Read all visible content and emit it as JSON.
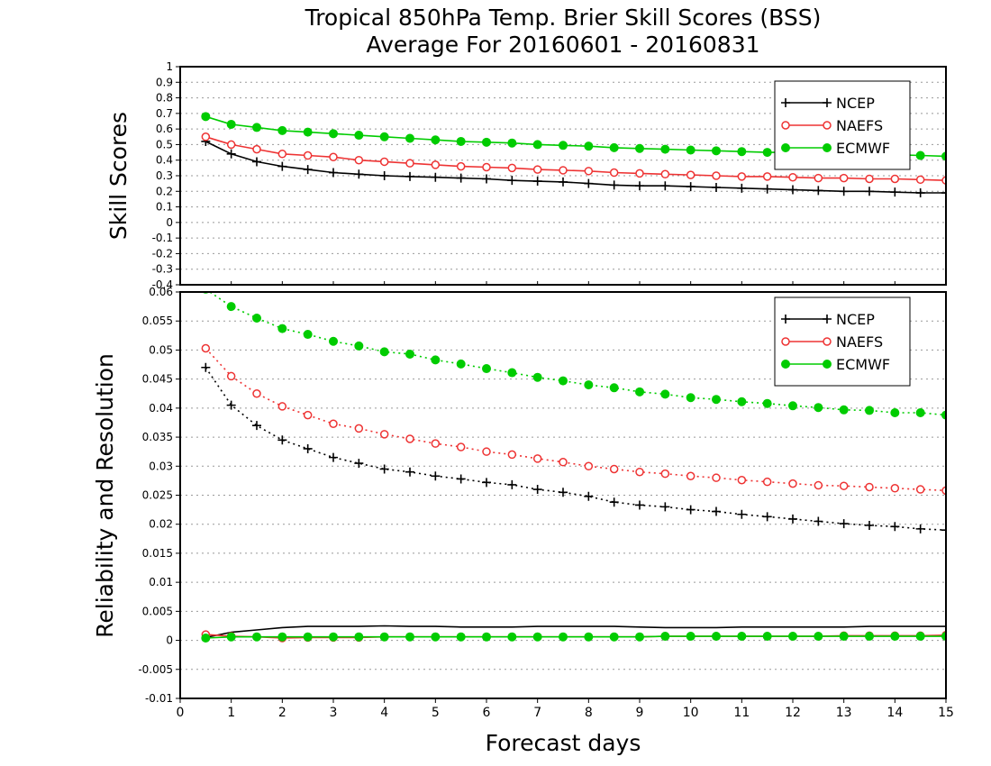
{
  "title_line1": "Tropical 850hPa Temp. Brier Skill Scores (BSS)",
  "title_line2": "Average For 20160601 - 20160831",
  "xlabel": "Forecast days",
  "colors": {
    "NCEP": "#000000",
    "NAEFS": "#ee3333",
    "ECMWF": "#00cc00"
  },
  "legend": [
    "NCEP",
    "NAEFS",
    "ECMWF"
  ],
  "chart_data": [
    {
      "type": "line",
      "ylabel": "Skill Scores",
      "xlim": [
        0,
        15
      ],
      "ylim": [
        -0.4,
        1
      ],
      "grid": true,
      "legend_position": "top-right",
      "yticks": [
        "-0.4",
        "-0.3",
        "-0.2",
        "-0.1",
        "0",
        "0.1",
        "0.2",
        "0.3",
        "0.4",
        "0.5",
        "0.6",
        "0.7",
        "0.8",
        "0.9",
        "1"
      ],
      "x": [
        0.5,
        1,
        1.5,
        2,
        2.5,
        3,
        3.5,
        4,
        4.5,
        5,
        5.5,
        6,
        6.5,
        7,
        7.5,
        8,
        8.5,
        9,
        9.5,
        10,
        10.5,
        11,
        11.5,
        12,
        12.5,
        13,
        13.5,
        14,
        14.5,
        15
      ],
      "series": [
        {
          "name": "NCEP",
          "style": "solid",
          "marker": "plus",
          "values": [
            0.52,
            0.44,
            0.39,
            0.36,
            0.34,
            0.32,
            0.31,
            0.3,
            0.295,
            0.29,
            0.285,
            0.28,
            0.27,
            0.265,
            0.26,
            0.25,
            0.24,
            0.235,
            0.235,
            0.23,
            0.225,
            0.22,
            0.215,
            0.21,
            0.205,
            0.2,
            0.2,
            0.195,
            0.19,
            0.19
          ]
        },
        {
          "name": "NAEFS",
          "style": "solid",
          "marker": "open-circle",
          "values": [
            0.55,
            0.5,
            0.47,
            0.44,
            0.43,
            0.42,
            0.4,
            0.39,
            0.38,
            0.37,
            0.36,
            0.355,
            0.35,
            0.34,
            0.335,
            0.33,
            0.32,
            0.315,
            0.31,
            0.305,
            0.3,
            0.295,
            0.295,
            0.29,
            0.285,
            0.285,
            0.28,
            0.28,
            0.275,
            0.27
          ]
        },
        {
          "name": "ECMWF",
          "style": "solid",
          "marker": "filled-circle",
          "values": [
            0.68,
            0.63,
            0.61,
            0.59,
            0.58,
            0.57,
            0.56,
            0.55,
            0.54,
            0.53,
            0.52,
            0.515,
            0.51,
            0.5,
            0.495,
            0.49,
            0.48,
            0.475,
            0.47,
            0.465,
            0.46,
            0.455,
            0.45,
            0.45,
            0.445,
            0.44,
            0.44,
            0.435,
            0.43,
            0.425
          ]
        }
      ]
    },
    {
      "type": "line",
      "ylabel": "Reliability and Resolution",
      "xlim": [
        0,
        15
      ],
      "ylim": [
        -0.01,
        0.06
      ],
      "grid": true,
      "legend_position": "top-right",
      "yticks": [
        "-0.01",
        "-0.005",
        "0",
        "0.005",
        "0.01",
        "0.015",
        "0.02",
        "0.025",
        "0.03",
        "0.035",
        "0.04",
        "0.045",
        "0.05",
        "0.055",
        "0.06"
      ],
      "xticks": [
        "0",
        "1",
        "2",
        "3",
        "4",
        "5",
        "6",
        "7",
        "8",
        "9",
        "10",
        "11",
        "12",
        "13",
        "14",
        "15"
      ],
      "x": [
        0.5,
        1,
        1.5,
        2,
        2.5,
        3,
        3.5,
        4,
        4.5,
        5,
        5.5,
        6,
        6.5,
        7,
        7.5,
        8,
        8.5,
        9,
        9.5,
        10,
        10.5,
        11,
        11.5,
        12,
        12.5,
        13,
        13.5,
        14,
        14.5,
        15
      ],
      "series": [
        {
          "name": "NCEP",
          "style": "dotted",
          "marker": "plus",
          "values": [
            0.047,
            0.0405,
            0.037,
            0.0345,
            0.033,
            0.0315,
            0.0305,
            0.0295,
            0.029,
            0.0283,
            0.0278,
            0.0272,
            0.0268,
            0.026,
            0.0255,
            0.0248,
            0.0238,
            0.0233,
            0.023,
            0.0225,
            0.0222,
            0.0217,
            0.0213,
            0.0209,
            0.0205,
            0.0201,
            0.0198,
            0.0196,
            0.0192,
            0.019
          ]
        },
        {
          "name": "NAEFS",
          "style": "dotted",
          "marker": "open-circle",
          "values": [
            0.0503,
            0.0455,
            0.0425,
            0.0403,
            0.0388,
            0.0373,
            0.0365,
            0.0355,
            0.0347,
            0.0339,
            0.0333,
            0.0325,
            0.032,
            0.0313,
            0.0307,
            0.03,
            0.0295,
            0.029,
            0.0287,
            0.0283,
            0.028,
            0.0276,
            0.0273,
            0.027,
            0.0267,
            0.0266,
            0.0264,
            0.0262,
            0.026,
            0.0258
          ]
        },
        {
          "name": "ECMWF",
          "style": "dotted",
          "marker": "filled-circle",
          "values": [
            0.0605,
            0.0575,
            0.0555,
            0.0537,
            0.0527,
            0.0515,
            0.0507,
            0.0497,
            0.0493,
            0.0483,
            0.0476,
            0.0468,
            0.0461,
            0.0453,
            0.0447,
            0.044,
            0.0435,
            0.0428,
            0.0424,
            0.0418,
            0.0415,
            0.0411,
            0.0408,
            0.0404,
            0.0401,
            0.0397,
            0.0396,
            0.0392,
            0.0392,
            0.0388
          ]
        },
        {
          "name": "NCEP",
          "style": "solid",
          "marker": "none",
          "values": [
            0.0005,
            0.0014,
            0.0018,
            0.0022,
            0.0024,
            0.0024,
            0.0024,
            0.0025,
            0.0024,
            0.0024,
            0.0023,
            0.0023,
            0.0023,
            0.0024,
            0.0024,
            0.0024,
            0.0024,
            0.0023,
            0.0022,
            0.0022,
            0.0022,
            0.0023,
            0.0023,
            0.0023,
            0.0023,
            0.0023,
            0.0024,
            0.0024,
            0.0024,
            0.0024
          ]
        },
        {
          "name": "NAEFS",
          "style": "solid",
          "marker": "open-circle",
          "values": [
            0.001,
            0.0007,
            0.0006,
            0.0004,
            0.0005,
            0.0005,
            0.0005,
            0.0006,
            0.0006,
            0.0006,
            0.0006,
            0.0006,
            0.0006,
            0.0006,
            0.0006,
            0.0006,
            0.0006,
            0.0006,
            0.0007,
            0.0007,
            0.0007,
            0.0007,
            0.0007,
            0.0007,
            0.0007,
            0.0008,
            0.0008,
            0.0008,
            0.0008,
            0.0009
          ]
        },
        {
          "name": "ECMWF",
          "style": "solid",
          "marker": "filled-circle",
          "values": [
            0.0004,
            0.0006,
            0.0006,
            0.0006,
            0.0006,
            0.0006,
            0.0006,
            0.0006,
            0.0006,
            0.0006,
            0.0006,
            0.0006,
            0.0006,
            0.0006,
            0.0006,
            0.0006,
            0.0006,
            0.0006,
            0.0007,
            0.0007,
            0.0007,
            0.0007,
            0.0007,
            0.0007,
            0.0007,
            0.0007,
            0.0007,
            0.0007,
            0.0007,
            0.0007
          ]
        }
      ]
    }
  ]
}
